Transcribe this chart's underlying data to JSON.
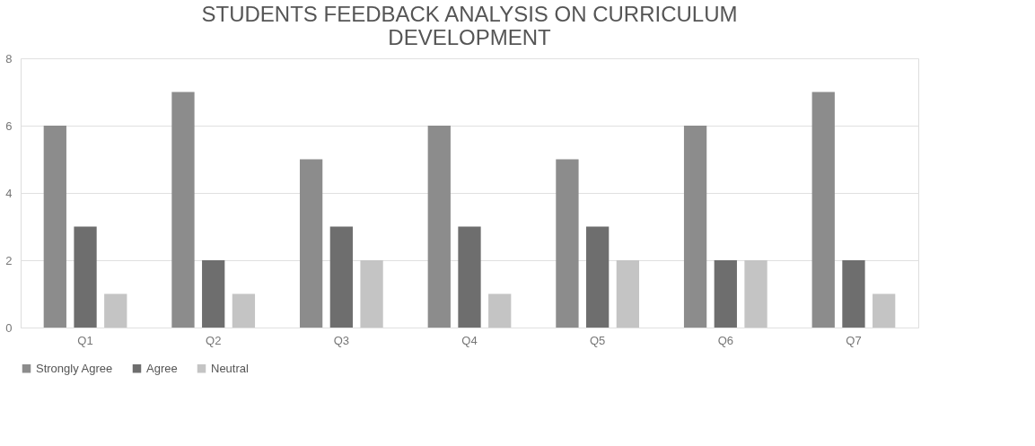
{
  "chart_data": {
    "type": "bar",
    "title": "STUDENTS FEEDBACK ANALYSIS ON CURRICULUM DEVELOPMENT",
    "categories": [
      "Q1",
      "Q2",
      "Q3",
      "Q4",
      "Q5",
      "Q6",
      "Q7"
    ],
    "series": [
      {
        "name": "Strongly Agree",
        "color": "#8c8c8c",
        "values": [
          6,
          7,
          5,
          6,
          5,
          6,
          7
        ]
      },
      {
        "name": "Agree",
        "color": "#6e6e6e",
        "values": [
          3,
          2,
          3,
          3,
          3,
          2,
          2
        ]
      },
      {
        "name": "Neutral",
        "color": "#c4c4c4",
        "values": [
          1,
          1,
          2,
          1,
          2,
          2,
          1
        ]
      }
    ],
    "ylim": [
      0,
      8
    ],
    "yticks": [
      0,
      2,
      4,
      6,
      8
    ],
    "grid": "y",
    "legend": "bottom"
  }
}
